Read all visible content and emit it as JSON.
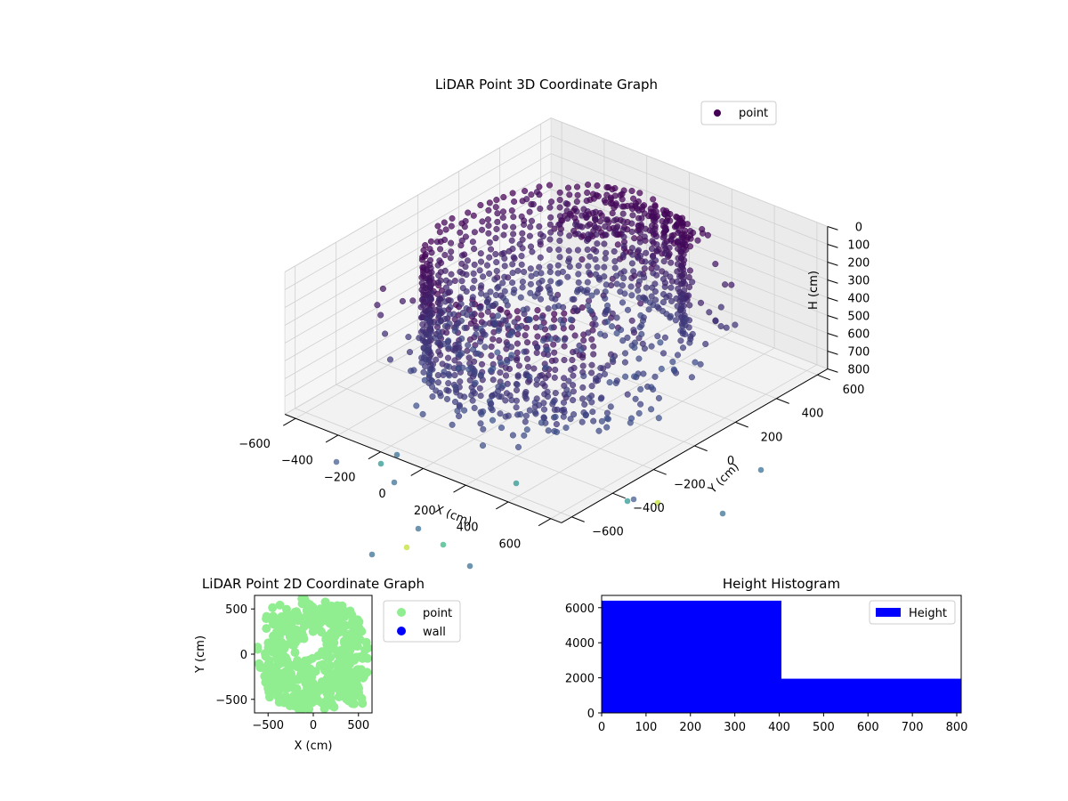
{
  "chart_data": [
    {
      "type": "scatter3d",
      "title": "LiDAR Point 3D Coordinate Graph",
      "xlabel": "X (cm)",
      "ylabel": "Y (cm)",
      "zlabel": "H (cm)",
      "xlim": [
        -650,
        650
      ],
      "ylim": [
        -650,
        650
      ],
      "zlim": [
        800,
        0
      ],
      "x_ticks": [
        -600,
        -400,
        -200,
        0,
        200,
        400,
        600
      ],
      "y_ticks": [
        -600,
        -400,
        -200,
        0,
        200,
        400,
        600
      ],
      "z_ticks": [
        0,
        100,
        200,
        300,
        400,
        500,
        600,
        700,
        800
      ],
      "legend": {
        "position": "top-right",
        "entries": [
          {
            "label": "point",
            "color": "#440154"
          }
        ]
      },
      "colormap": "viridis",
      "grid": true
    },
    {
      "type": "scatter",
      "title": "LiDAR Point 2D Coordinate Graph",
      "xlabel": "X (cm)",
      "ylabel": "Y (cm)",
      "xlim": [
        -650,
        650
      ],
      "ylim": [
        -650,
        650
      ],
      "x_ticks": [
        -500,
        0,
        500
      ],
      "y_ticks": [
        -500,
        0,
        500
      ],
      "legend": {
        "position": "outside-right",
        "entries": [
          {
            "label": "point",
            "color": "#90ee90"
          },
          {
            "label": "wall",
            "color": "#0000ff"
          }
        ]
      },
      "series": [
        {
          "name": "point",
          "color": "#90ee90"
        },
        {
          "name": "wall",
          "color": "#0000ff"
        }
      ]
    },
    {
      "type": "bar",
      "title": "Height Histogram",
      "bins": [
        [
          0,
          405
        ],
        [
          405,
          810
        ]
      ],
      "values": [
        6400,
        1950
      ],
      "xlim": [
        0,
        810
      ],
      "ylim": [
        0,
        6700
      ],
      "x_ticks": [
        0,
        100,
        200,
        300,
        400,
        500,
        600,
        700,
        800
      ],
      "y_ticks": [
        0,
        2000,
        4000,
        6000
      ],
      "color": "#0000ff",
      "legend": {
        "position": "top-right",
        "entries": [
          {
            "label": "Height",
            "color": "#0000ff"
          }
        ]
      },
      "series": [
        {
          "name": "Height",
          "values": [
            6400,
            1950
          ]
        }
      ]
    }
  ]
}
